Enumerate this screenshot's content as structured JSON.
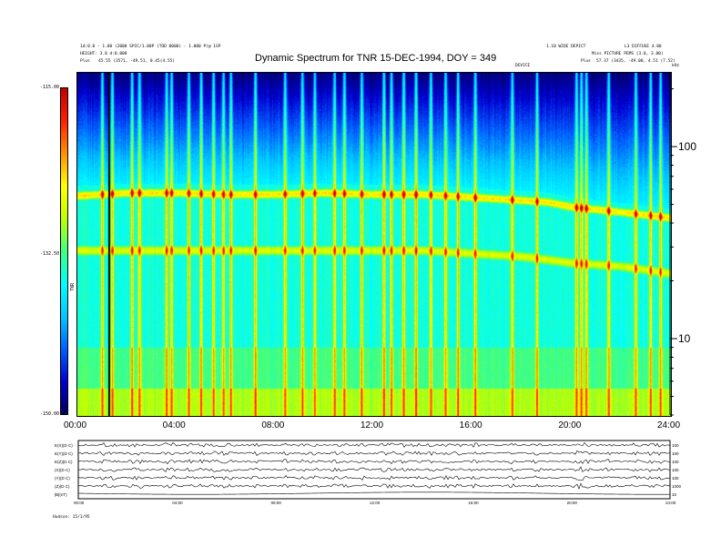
{
  "header": {
    "left_line1": "1d:0.0 - 1.00 (2000 SPIC/1.00P (TOD 0000) - 1.000 P)@ 1SP",
    "left_line2": "HEIGHT: 3.0  d:0.000",
    "left_line3_tag": "Plus",
    "left_line3": "45.55 (3571, -49.51, 0.45(4.55)",
    "right_line1": "1.10 WIDE DEPICT",
    "right_line1b": "L3 DIFFUSE 4.00",
    "right_line2": "Miss PICTURE PEMS (3.0, 3.00)",
    "right_line3_tag": "Plus",
    "right_line3": "57.37 (3435, -49.00, 4.51 (7.52)",
    "right_line4": "DEVICE",
    "khz_label": "kHz"
  },
  "colorbar": {
    "label": "TNR",
    "stops": [
      "#000060",
      "#0000d0",
      "#0060ff",
      "#00c8ff",
      "#00ffff",
      "#40ff80",
      "#c0ff00",
      "#ffff00",
      "#ff9000",
      "#ff2000",
      "#c00000"
    ]
  },
  "panels": [
    {
      "label": "E(X)(D C)",
      "right_tick": "100"
    },
    {
      "label": "E(Y)(D C)",
      "right_tick": "100"
    },
    {
      "label": "E(Z)(D C)",
      "right_tick": "100"
    },
    {
      "label": "(X)(D C)",
      "right_tick": "100"
    },
    {
      "label": "(Y)(D C)",
      "right_tick": "100"
    },
    {
      "label": "(Z)(D C)",
      "right_tick": "1000"
    },
    {
      "label": "|B|(nT)",
      "right_tick": "10"
    }
  ],
  "footer": {
    "left_note": "Hudson: 15/1/95",
    "bottom_ticks": [
      "00:00",
      "04:00",
      "08:00",
      "12:00",
      "16:00",
      "20:00",
      "24:00"
    ]
  },
  "chart_data": {
    "type": "heatmap",
    "title": "Dynamic Spectrum for TNR 15-DEC-1994, DOY = 349",
    "xlabel": "",
    "ylabel": "",
    "x_ticks": [
      "00:00",
      "04:00",
      "08:00",
      "12:00",
      "16:00",
      "20:00",
      "24:00"
    ],
    "xlim_hours": [
      0,
      24
    ],
    "y_scale": "log",
    "y_unit": "kHz",
    "ylim_khz": [
      4,
      245
    ],
    "y_ticks": [
      "10",
      "100"
    ],
    "colorbar_ticks": [
      "-115.00",
      "-132.50",
      "-150.00"
    ],
    "colorbar_range": [
      -150,
      -115
    ],
    "plasma_line_khz": {
      "time_hours": [
        0,
        1,
        2,
        4,
        6,
        8,
        10,
        12,
        13,
        14,
        16,
        18,
        19,
        20,
        22,
        24
      ],
      "upper": [
        56,
        57,
        58,
        58,
        57,
        57,
        58,
        57,
        57,
        57,
        55,
        53,
        52,
        49,
        46,
        43
      ],
      "lower": [
        29,
        29,
        29,
        29,
        29,
        29,
        29,
        29,
        29,
        29,
        28,
        27,
        26,
        25,
        24,
        22
      ]
    },
    "bursts_hours": [
      1.0,
      1.4,
      2.2,
      2.5,
      3.6,
      3.8,
      4.5,
      5.0,
      5.5,
      5.9,
      6.2,
      7.2,
      8.4,
      9.1,
      9.6,
      10.4,
      10.8,
      11.5,
      12.4,
      12.7,
      13.2,
      13.7,
      14.3,
      14.9,
      15.4,
      16.1,
      17.6,
      18.6,
      20.2,
      20.4,
      20.6,
      21.5,
      22.6,
      23.2,
      23.6
    ]
  }
}
